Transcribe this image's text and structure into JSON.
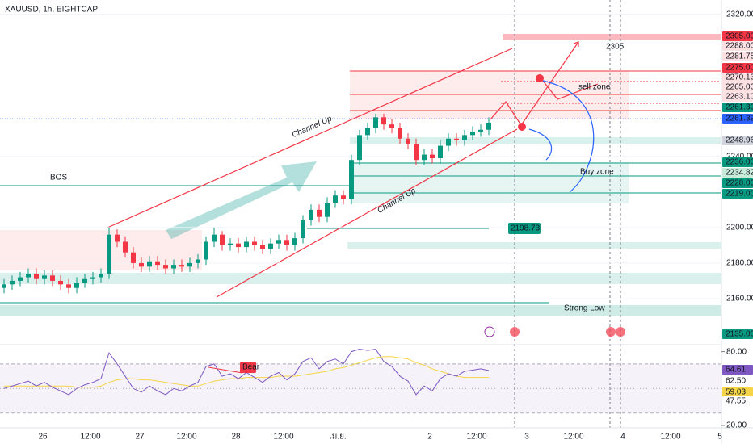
{
  "chart_data": {
    "type": "candlestick",
    "title": "XAUUSD, 1h, EIGHTCAP",
    "up_color": "#089981",
    "down_color": "#f23645",
    "open": [
      2166,
      2168,
      2170,
      2172,
      2174,
      2171,
      2173,
      2170,
      2168,
      2166,
      2169,
      2171,
      2172,
      2174,
      2196,
      2192,
      2186,
      2180,
      2178,
      2181,
      2179,
      2177,
      2179,
      2178,
      2180,
      2182,
      2192,
      2196,
      2190,
      2191,
      2189,
      2192,
      2190,
      2188,
      2191,
      2193,
      2190,
      2194,
      2204,
      2210,
      2206,
      2214,
      2218,
      2216,
      2238,
      2252,
      2256,
      2262,
      2258,
      2256,
      2250,
      2247,
      2238,
      2241,
      2239,
      2246,
      2250,
      2249,
      2252,
      2254,
      2255
    ],
    "high": [
      2171,
      2173,
      2175,
      2177,
      2177,
      2176,
      2176,
      2173,
      2171,
      2172,
      2174,
      2175,
      2177,
      2200,
      2199,
      2195,
      2189,
      2183,
      2184,
      2184,
      2182,
      2182,
      2182,
      2183,
      2185,
      2195,
      2200,
      2198,
      2194,
      2194,
      2195,
      2195,
      2193,
      2194,
      2196,
      2196,
      2197,
      2207,
      2213,
      2213,
      2217,
      2221,
      2221,
      2241,
      2255,
      2259,
      2264,
      2264,
      2261,
      2259,
      2253,
      2250,
      2244,
      2244,
      2249,
      2253,
      2253,
      2255,
      2257,
      2258,
      2262
    ],
    "low": [
      2163,
      2165,
      2167,
      2169,
      2168,
      2168,
      2167,
      2165,
      2163,
      2163,
      2166,
      2168,
      2169,
      2171,
      2189,
      2183,
      2177,
      2175,
      2175,
      2176,
      2174,
      2174,
      2175,
      2175,
      2177,
      2179,
      2189,
      2187,
      2187,
      2186,
      2186,
      2187,
      2185,
      2185,
      2188,
      2187,
      2187,
      2191,
      2201,
      2203,
      2203,
      2211,
      2213,
      2213,
      2235,
      2249,
      2253,
      2255,
      2253,
      2247,
      2244,
      2235,
      2235,
      2236,
      2236,
      2243,
      2246,
      2246,
      2249,
      2251,
      2252
    ],
    "close": [
      2168,
      2170,
      2172,
      2174,
      2171,
      2173,
      2170,
      2168,
      2166,
      2169,
      2171,
      2172,
      2174,
      2196,
      2192,
      2186,
      2180,
      2178,
      2181,
      2179,
      2177,
      2179,
      2178,
      2180,
      2182,
      2192,
      2196,
      2190,
      2191,
      2189,
      2192,
      2190,
      2188,
      2191,
      2193,
      2190,
      2194,
      2204,
      2210,
      2206,
      2214,
      2218,
      2216,
      2238,
      2252,
      2256,
      2262,
      2258,
      2256,
      2250,
      2247,
      2238,
      2241,
      2239,
      2246,
      2250,
      2249,
      2252,
      2254,
      2255,
      2259
    ],
    "ylim": [
      2135,
      2328
    ],
    "yticks": [
      {
        "value": 2320,
        "label": "2320.00"
      },
      {
        "value": 2240,
        "label": "2240.00"
      },
      {
        "value": 2200,
        "label": "2200.00"
      },
      {
        "value": 2180,
        "label": "2180.00"
      },
      {
        "value": 2160,
        "label": "2160.00"
      }
    ],
    "price_tags": [
      "2305.00",
      "2288.00",
      "2281.75",
      "2275.00",
      "2270.13",
      "2265.00",
      "2263.10",
      "2261.39",
      "2261.39",
      "2248.96",
      "2236.00",
      "2234.82",
      "2228.00",
      "2219.00",
      "2135.00"
    ],
    "time_labels": [
      "26",
      "12:00",
      "27",
      "12:00",
      "28",
      "12:00",
      "เม.ย.",
      "2",
      "12:00",
      "3",
      "12:00",
      "4",
      "12:00",
      "5"
    ],
    "annotations": [
      "Channel Up",
      "Channel Up",
      "sell zone",
      "Buy zone",
      "BOS",
      "Bear",
      "2198.73",
      "2305",
      "Strong Low"
    ],
    "rsi": {
      "color": "#7e57c2",
      "ma_color": "#f5d547",
      "values": [
        50,
        52,
        54,
        56,
        52,
        55,
        51,
        48,
        45,
        50,
        53,
        55,
        58,
        79,
        70,
        60,
        50,
        47,
        52,
        48,
        45,
        50,
        48,
        52,
        55,
        68,
        70,
        60,
        62,
        58,
        63,
        59,
        55,
        60,
        63,
        57,
        62,
        72,
        75,
        66,
        72,
        74,
        70,
        80,
        82,
        81,
        82,
        72,
        68,
        60,
        56,
        45,
        52,
        48,
        58,
        62,
        60,
        64,
        65,
        66,
        64.61
      ],
      "ma": [
        52,
        52,
        52,
        52,
        52,
        52,
        52,
        52,
        52,
        51,
        51,
        51,
        52,
        55,
        57,
        58,
        58,
        57,
        57,
        56,
        55,
        54,
        53,
        52,
        52,
        54,
        56,
        57,
        58,
        58,
        59,
        59,
        59,
        59,
        60,
        60,
        60,
        61,
        62,
        63,
        64,
        66,
        67,
        69,
        71,
        73,
        75,
        76,
        76,
        75,
        74,
        71,
        69,
        66,
        64,
        62,
        60,
        59,
        59,
        59,
        59.03
      ],
      "ylim": [
        18,
        85
      ],
      "yticks": [
        {
          "value": 80,
          "label": "80.00"
        },
        {
          "value": 20,
          "label": "20.00"
        }
      ],
      "levels": [
        70,
        50,
        30
      ],
      "tags": [
        "64.61",
        "62.50",
        "59.03",
        "47.55"
      ]
    }
  }
}
